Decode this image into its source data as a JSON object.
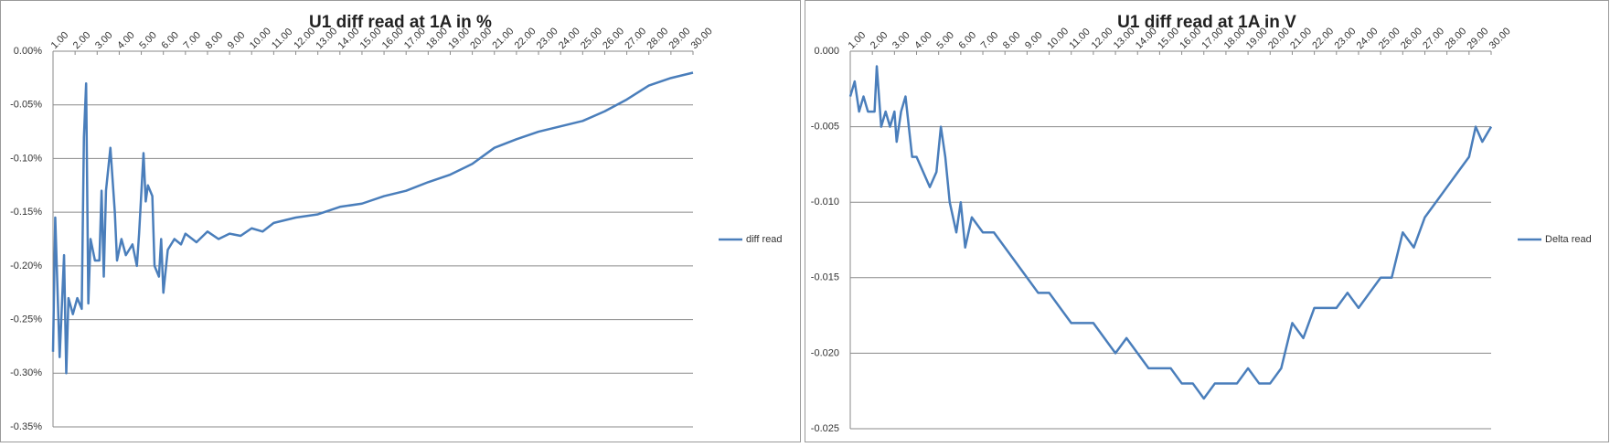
{
  "chart_data": [
    {
      "type": "line",
      "title": "U1 diff read at 1A in %",
      "x": [
        1,
        1.1,
        1.3,
        1.5,
        1.6,
        1.7,
        1.9,
        2.1,
        2.3,
        2.4,
        2.5,
        2.6,
        2.7,
        2.9,
        3.1,
        3.2,
        3.3,
        3.4,
        3.6,
        3.8,
        3.9,
        4.1,
        4.3,
        4.6,
        4.8,
        4.9,
        5.1,
        5.2,
        5.3,
        5.5,
        5.6,
        5.8,
        5.9,
        6.0,
        6.2,
        6.5,
        6.8,
        7.0,
        7.5,
        8,
        8.5,
        9,
        9.5,
        10,
        10.5,
        11,
        12,
        13,
        14,
        15,
        16,
        17,
        18,
        19,
        20,
        21,
        22,
        23,
        24,
        25,
        26,
        27,
        28,
        29,
        30
      ],
      "series": [
        {
          "name": "diff read",
          "color": "#4a7ebb",
          "values": [
            -0.28,
            -0.155,
            -0.285,
            -0.19,
            -0.3,
            -0.23,
            -0.245,
            -0.23,
            -0.24,
            -0.08,
            -0.03,
            -0.235,
            -0.175,
            -0.195,
            -0.195,
            -0.13,
            -0.21,
            -0.13,
            -0.09,
            -0.15,
            -0.195,
            -0.175,
            -0.19,
            -0.18,
            -0.2,
            -0.17,
            -0.095,
            -0.14,
            -0.125,
            -0.135,
            -0.2,
            -0.21,
            -0.175,
            -0.225,
            -0.185,
            -0.175,
            -0.18,
            -0.17,
            -0.178,
            -0.168,
            -0.175,
            -0.17,
            -0.172,
            -0.165,
            -0.168,
            -0.16,
            -0.155,
            -0.152,
            -0.145,
            -0.142,
            -0.135,
            -0.13,
            -0.122,
            -0.115,
            -0.105,
            -0.09,
            -0.082,
            -0.075,
            -0.07,
            -0.065,
            -0.056,
            -0.045,
            -0.032,
            -0.025,
            -0.02
          ]
        }
      ],
      "xlim": [
        1,
        30
      ],
      "xticks": [
        {
          "value": 1,
          "label": "1.00"
        },
        {
          "value": 2,
          "label": "2.00"
        },
        {
          "value": 3,
          "label": "3.00"
        },
        {
          "value": 4,
          "label": "4.00"
        },
        {
          "value": 5,
          "label": "5.00"
        },
        {
          "value": 6,
          "label": "6.00"
        },
        {
          "value": 7,
          "label": "7.00"
        },
        {
          "value": 8,
          "label": "8.00"
        },
        {
          "value": 9,
          "label": "9.00"
        },
        {
          "value": 10,
          "label": "10.00"
        },
        {
          "value": 11,
          "label": "11.00"
        },
        {
          "value": 12,
          "label": "12.00"
        },
        {
          "value": 13,
          "label": "13.00"
        },
        {
          "value": 14,
          "label": "14.00"
        },
        {
          "value": 15,
          "label": "15.00"
        },
        {
          "value": 16,
          "label": "16.00"
        },
        {
          "value": 17,
          "label": "17.00"
        },
        {
          "value": 18,
          "label": "18.00"
        },
        {
          "value": 19,
          "label": "19.00"
        },
        {
          "value": 20,
          "label": "20.00"
        },
        {
          "value": 21,
          "label": "21.00"
        },
        {
          "value": 22,
          "label": "22.00"
        },
        {
          "value": 23,
          "label": "23.00"
        },
        {
          "value": 24,
          "label": "24.00"
        },
        {
          "value": 25,
          "label": "25.00"
        },
        {
          "value": 26,
          "label": "26.00"
        },
        {
          "value": 27,
          "label": "27.00"
        },
        {
          "value": 28,
          "label": "28.00"
        },
        {
          "value": 29,
          "label": "29.00"
        },
        {
          "value": 30,
          "label": "30.00"
        }
      ],
      "ylim": [
        -0.35,
        0
      ],
      "yticks": [
        {
          "value": 0,
          "label": "0.00%"
        },
        {
          "value": -0.05,
          "label": "-0.05%"
        },
        {
          "value": -0.1,
          "label": "-0.10%"
        },
        {
          "value": -0.15,
          "label": "-0.15%"
        },
        {
          "value": -0.2,
          "label": "-0.20%"
        },
        {
          "value": -0.25,
          "label": "-0.25%"
        },
        {
          "value": -0.3,
          "label": "-0.30%"
        },
        {
          "value": -0.35,
          "label": "-0.35%"
        }
      ],
      "grid": true,
      "legend": "right"
    },
    {
      "type": "line",
      "title": "U1 diff read at 1A in V",
      "x": [
        1,
        1.2,
        1.4,
        1.6,
        1.8,
        2.1,
        2.2,
        2.4,
        2.6,
        2.8,
        3.0,
        3.1,
        3.3,
        3.5,
        3.8,
        4.0,
        4.3,
        4.6,
        4.9,
        5.1,
        5.3,
        5.5,
        5.8,
        6,
        6.2,
        6.5,
        7,
        7.5,
        8,
        8.5,
        9,
        9.5,
        10,
        10.5,
        11,
        12,
        12.5,
        13,
        13.5,
        14,
        14.5,
        15,
        15.5,
        16,
        16.5,
        17,
        17.5,
        18,
        18.5,
        19,
        19.5,
        20,
        20.5,
        21,
        21.5,
        22,
        22.5,
        23,
        23.5,
        24,
        24.5,
        25,
        25.5,
        26,
        26.5,
        27,
        27.5,
        28,
        28.5,
        29,
        29.3,
        29.6,
        30
      ],
      "series": [
        {
          "name": "Delta read",
          "color": "#4a7ebb",
          "values": [
            -0.003,
            -0.002,
            -0.004,
            -0.003,
            -0.004,
            -0.004,
            -0.001,
            -0.005,
            -0.004,
            -0.005,
            -0.004,
            -0.006,
            -0.004,
            -0.003,
            -0.007,
            -0.007,
            -0.008,
            -0.009,
            -0.008,
            -0.005,
            -0.007,
            -0.01,
            -0.012,
            -0.01,
            -0.013,
            -0.011,
            -0.012,
            -0.012,
            -0.013,
            -0.014,
            -0.015,
            -0.016,
            -0.016,
            -0.017,
            -0.018,
            -0.018,
            -0.019,
            -0.02,
            -0.019,
            -0.02,
            -0.021,
            -0.021,
            -0.021,
            -0.022,
            -0.022,
            -0.023,
            -0.022,
            -0.022,
            -0.022,
            -0.021,
            -0.022,
            -0.022,
            -0.021,
            -0.018,
            -0.019,
            -0.017,
            -0.017,
            -0.017,
            -0.016,
            -0.017,
            -0.016,
            -0.015,
            -0.015,
            -0.012,
            -0.013,
            -0.011,
            -0.01,
            -0.009,
            -0.008,
            -0.007,
            -0.005,
            -0.006,
            -0.005
          ]
        }
      ],
      "xlim": [
        1,
        30
      ],
      "xticks": [
        {
          "value": 1,
          "label": "1.00"
        },
        {
          "value": 2,
          "label": "2.00"
        },
        {
          "value": 3,
          "label": "3.00"
        },
        {
          "value": 4,
          "label": "4.00"
        },
        {
          "value": 5,
          "label": "5.00"
        },
        {
          "value": 6,
          "label": "6.00"
        },
        {
          "value": 7,
          "label": "7.00"
        },
        {
          "value": 8,
          "label": "8.00"
        },
        {
          "value": 9,
          "label": "9.00"
        },
        {
          "value": 10,
          "label": "10.00"
        },
        {
          "value": 11,
          "label": "11.00"
        },
        {
          "value": 12,
          "label": "12.00"
        },
        {
          "value": 13,
          "label": "13.00"
        },
        {
          "value": 14,
          "label": "14.00"
        },
        {
          "value": 15,
          "label": "15.00"
        },
        {
          "value": 16,
          "label": "16.00"
        },
        {
          "value": 17,
          "label": "17.00"
        },
        {
          "value": 18,
          "label": "18.00"
        },
        {
          "value": 19,
          "label": "19.00"
        },
        {
          "value": 20,
          "label": "20.00"
        },
        {
          "value": 21,
          "label": "21.00"
        },
        {
          "value": 22,
          "label": "22.00"
        },
        {
          "value": 23,
          "label": "23.00"
        },
        {
          "value": 24,
          "label": "24.00"
        },
        {
          "value": 25,
          "label": "25.00"
        },
        {
          "value": 26,
          "label": "26.00"
        },
        {
          "value": 27,
          "label": "27.00"
        },
        {
          "value": 28,
          "label": "28.00"
        },
        {
          "value": 29,
          "label": "29.00"
        },
        {
          "value": 30,
          "label": "30.00"
        }
      ],
      "ylim": [
        -0.025,
        0
      ],
      "yticks": [
        {
          "value": 0,
          "label": "0.000"
        },
        {
          "value": -0.005,
          "label": "-0.005"
        },
        {
          "value": -0.01,
          "label": "-0.010"
        },
        {
          "value": -0.015,
          "label": "-0.015"
        },
        {
          "value": -0.02,
          "label": "-0.020"
        },
        {
          "value": -0.025,
          "label": "-0.025"
        }
      ],
      "grid": true,
      "legend": "right"
    }
  ]
}
